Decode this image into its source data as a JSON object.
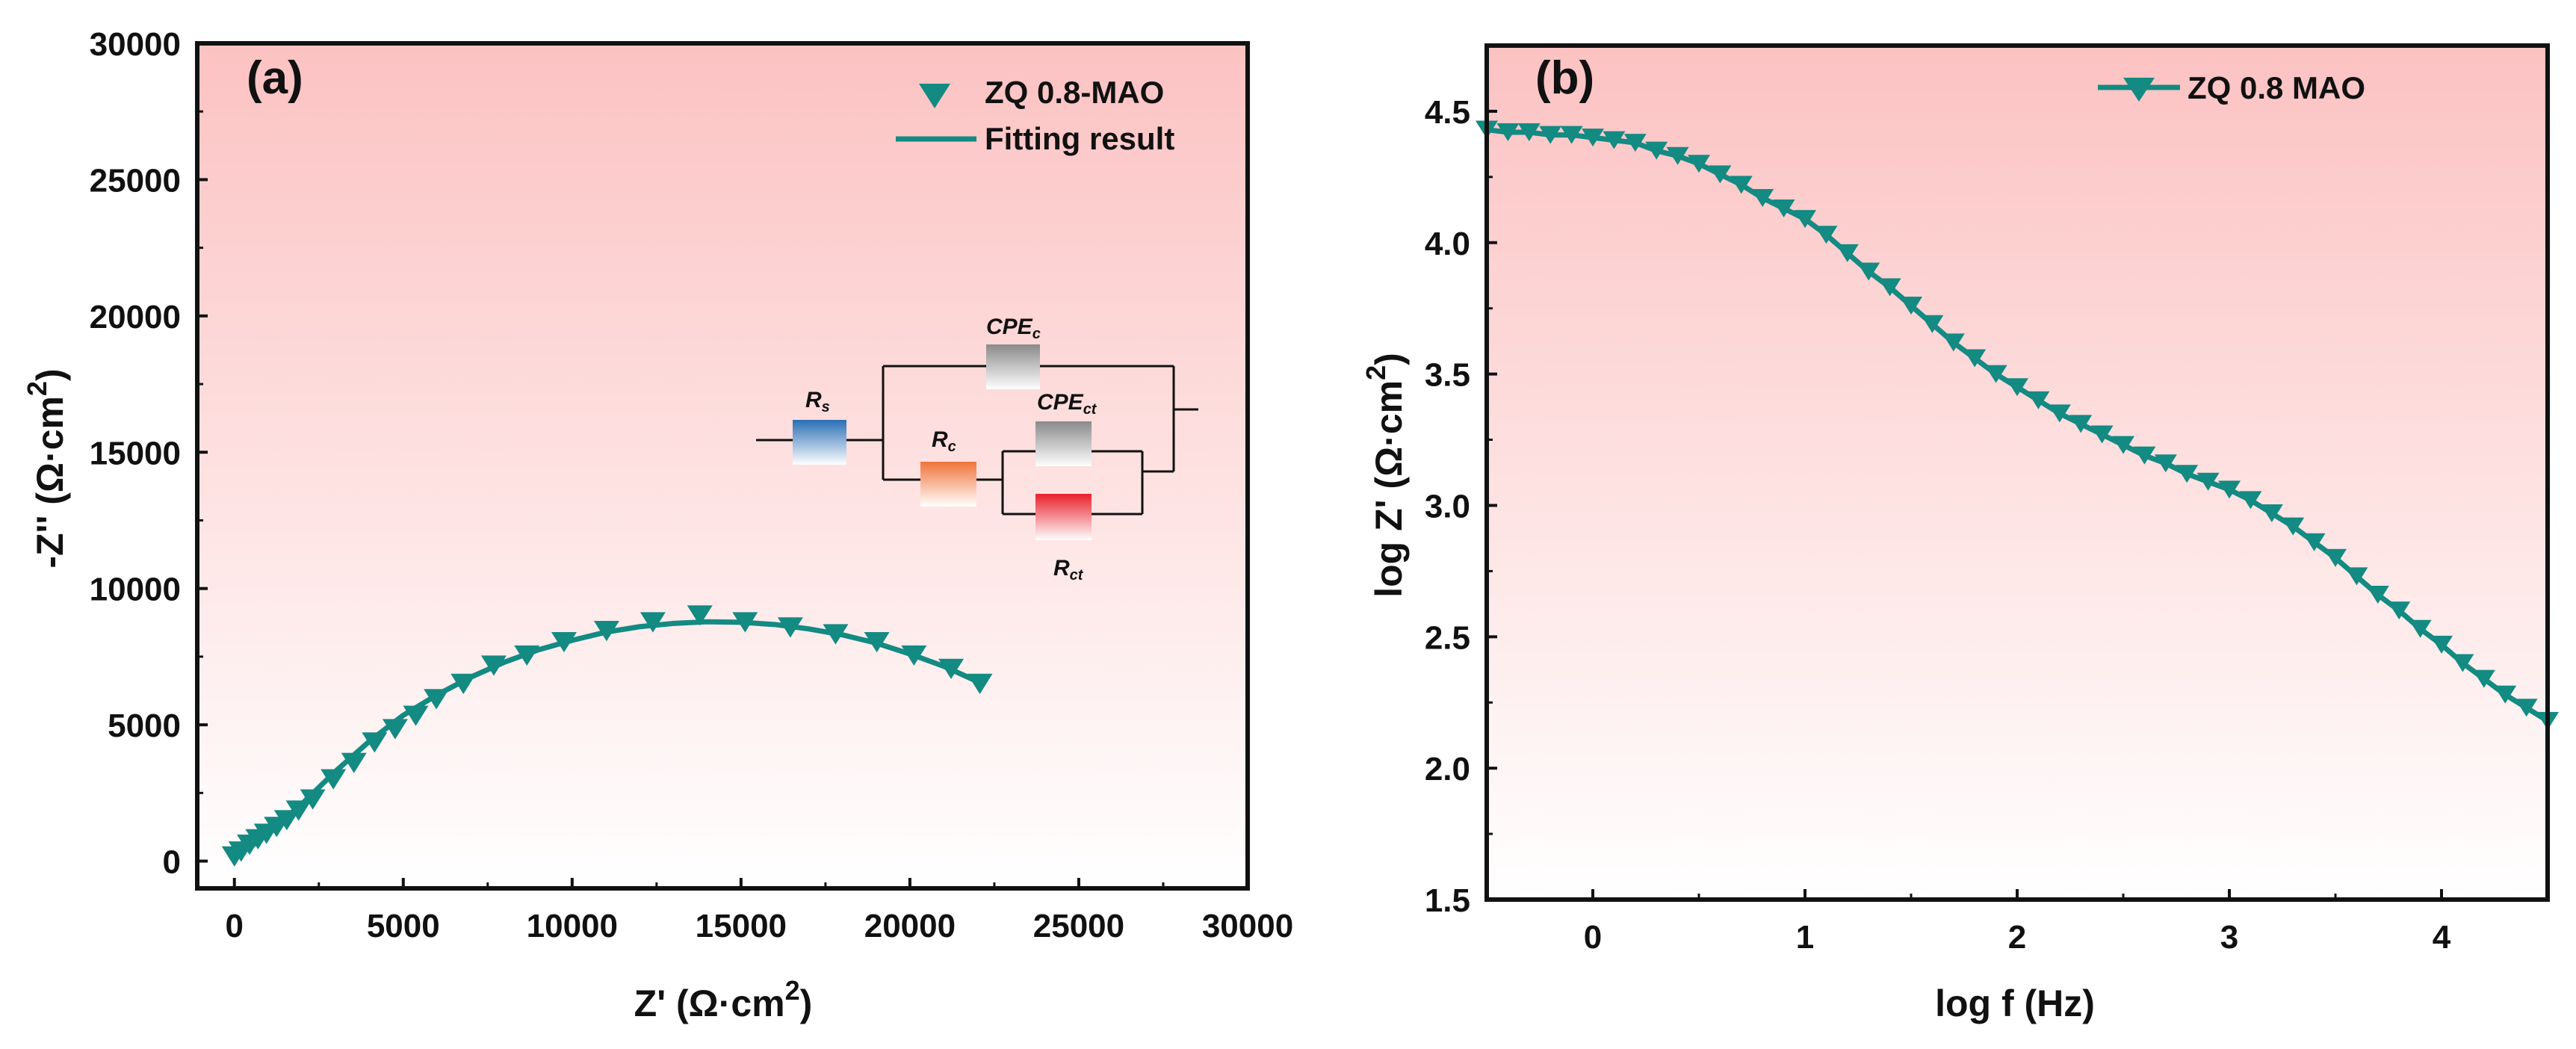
{
  "colors": {
    "series": "#138a82",
    "bg_top": "#fcc2c2",
    "bg_bottom": "#ffffff",
    "rs": "#2a6fb5",
    "rc": "#f0733a",
    "rct": "#e8202a",
    "cpe": "#8a8a8a"
  },
  "chart_data": [
    {
      "type": "scatter",
      "panel_label": "(a)",
      "xlabel": "Z' (Ω·cm",
      "xlabel_sup": "2",
      "xlabel_end": ")",
      "ylabel": "-Z'' (Ω·cm",
      "ylabel_sup": "2",
      "ylabel_end": ")",
      "xlim": [
        -1100,
        30000
      ],
      "ylim": [
        -1000,
        30000
      ],
      "xticks": [
        0,
        5000,
        10000,
        15000,
        20000,
        25000,
        30000
      ],
      "yticks": [
        0,
        5000,
        10000,
        15000,
        20000,
        25000,
        30000
      ],
      "legend": {
        "placement": "top-right",
        "entries": [
          "ZQ 0.8-MAO",
          "Fitting result"
        ]
      },
      "series": [
        {
          "name": "ZQ 0.8-MAO",
          "kind": "points",
          "x": [
            0,
            200,
            450,
            700,
            950,
            1250,
            1550,
            1900,
            2320,
            2930,
            3540,
            4150,
            4760,
            5370,
            5980,
            6780,
            7680,
            8660,
            9760,
            11020,
            12390,
            13780,
            15120,
            16460,
            17800,
            19020,
            20120,
            21220,
            22070
          ],
          "y": [
            170,
            350,
            600,
            800,
            1000,
            1250,
            1500,
            1850,
            2260,
            3000,
            3600,
            4350,
            4840,
            5330,
            5940,
            6500,
            7170,
            7540,
            8030,
            8440,
            8760,
            9010,
            8760,
            8570,
            8320,
            8030,
            7540,
            7050,
            6500
          ]
        },
        {
          "name": "Fitting result",
          "kind": "line",
          "x": [
            0,
            500,
            1000,
            2000,
            3000,
            4000,
            5000,
            6000,
            7000,
            8000,
            9000,
            10000,
            11000,
            12000,
            13000,
            14000,
            15000,
            16000,
            17000,
            18000,
            19000,
            20000,
            21000,
            22070
          ],
          "y": [
            150,
            550,
            1000,
            2100,
            3300,
            4400,
            5350,
            6100,
            6750,
            7300,
            7750,
            8100,
            8400,
            8600,
            8720,
            8780,
            8760,
            8680,
            8520,
            8300,
            8000,
            7600,
            7150,
            6550
          ]
        }
      ],
      "inset_circuit": {
        "labels": {
          "rs": "R",
          "rs_sub": "s",
          "cpec": "CPE",
          "cpec_sub": "c",
          "rc": "R",
          "rc_sub": "c",
          "cpect": "CPE",
          "cpect_sub": "ct",
          "rct": "R",
          "rct_sub": "ct"
        }
      }
    },
    {
      "type": "line",
      "panel_label": "(b)",
      "xlabel": "log f (Hz)",
      "ylabel": "log Z' (Ω·cm",
      "ylabel_sup": "2",
      "ylabel_end": ")",
      "xlim": [
        -0.5,
        4.5
      ],
      "ylim": [
        1.5,
        4.75
      ],
      "xticks": [
        0,
        1,
        2,
        3,
        4
      ],
      "yticks": [
        "1.5",
        "2.0",
        "2.5",
        "3.0",
        "3.5",
        "4.0",
        "4.5"
      ],
      "legend": {
        "placement": "top-right",
        "entries": [
          "ZQ 0.8 MAO"
        ]
      },
      "series": [
        {
          "name": "ZQ 0.8 MAO",
          "x": [
            -0.5,
            -0.4,
            -0.3,
            -0.2,
            -0.1,
            0,
            0.1,
            0.2,
            0.3,
            0.4,
            0.5,
            0.6,
            0.7,
            0.8,
            0.9,
            1.0,
            1.1,
            1.2,
            1.3,
            1.4,
            1.5,
            1.6,
            1.7,
            1.8,
            1.9,
            2.0,
            2.1,
            2.2,
            2.3,
            2.4,
            2.5,
            2.6,
            2.7,
            2.8,
            2.9,
            3.0,
            3.1,
            3.2,
            3.3,
            3.4,
            3.5,
            3.6,
            3.7,
            3.8,
            3.9,
            4.0,
            4.1,
            4.2,
            4.3,
            4.4,
            4.5
          ],
          "y": [
            4.43,
            4.42,
            4.42,
            4.41,
            4.41,
            4.4,
            4.39,
            4.38,
            4.35,
            4.33,
            4.3,
            4.26,
            4.22,
            4.17,
            4.13,
            4.09,
            4.03,
            3.96,
            3.89,
            3.83,
            3.76,
            3.69,
            3.62,
            3.56,
            3.5,
            3.45,
            3.4,
            3.35,
            3.31,
            3.27,
            3.23,
            3.19,
            3.16,
            3.12,
            3.09,
            3.06,
            3.02,
            2.97,
            2.92,
            2.86,
            2.8,
            2.73,
            2.66,
            2.6,
            2.53,
            2.47,
            2.4,
            2.34,
            2.28,
            2.23,
            2.18
          ]
        }
      ]
    }
  ]
}
